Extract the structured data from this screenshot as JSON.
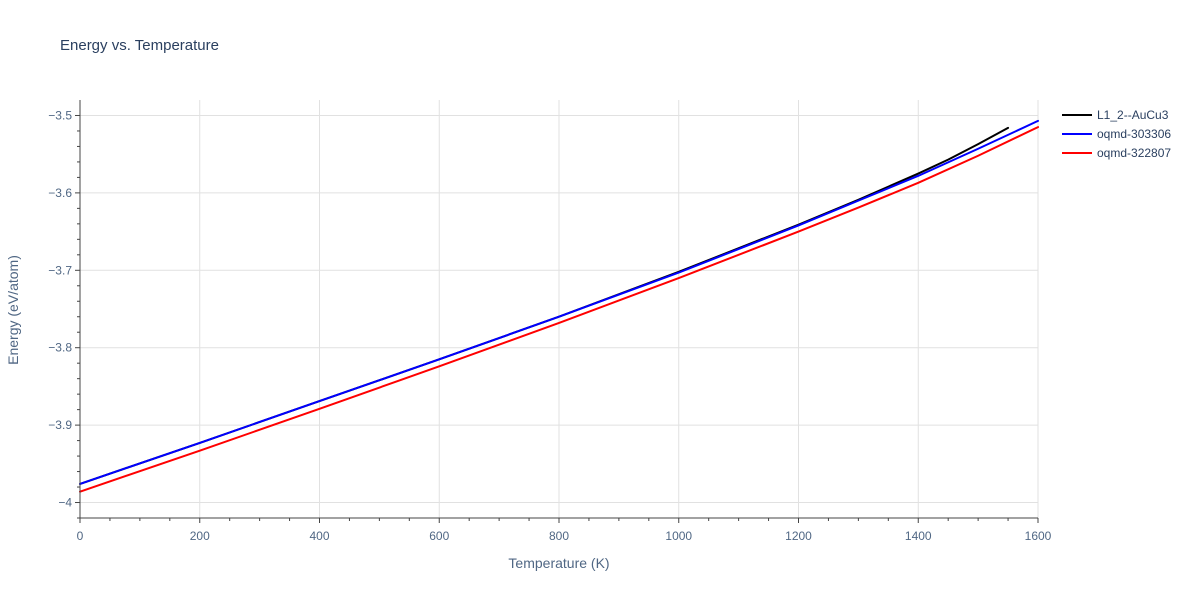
{
  "chart_data": {
    "type": "line",
    "title": "Energy vs. Temperature",
    "xlabel": "Temperature (K)",
    "ylabel": "Energy (eV/atom)",
    "xlim": [
      0,
      1600
    ],
    "ylim": [
      -4.02,
      -3.48
    ],
    "x_ticks": [
      0,
      200,
      400,
      600,
      800,
      1000,
      1200,
      1400,
      1600
    ],
    "x_tick_labels": [
      "0",
      "200",
      "400",
      "600",
      "800",
      "1000",
      "1200",
      "1400",
      "1600"
    ],
    "y_ticks": [
      -4.0,
      -3.9,
      -3.8,
      -3.7,
      -3.6,
      -3.5
    ],
    "y_tick_labels": [
      "−4",
      "−3.9",
      "−3.8",
      "−3.7",
      "−3.6",
      "−3.5"
    ],
    "grid": true,
    "legend_position": "top-right outside",
    "series": [
      {
        "name": "L1_2--AuCu3",
        "color": "#000000",
        "x": [
          0,
          200,
          400,
          600,
          800,
          1000,
          1200,
          1300,
          1400,
          1450,
          1500,
          1550
        ],
        "y": [
          -3.976,
          -3.923,
          -3.869,
          -3.815,
          -3.76,
          -3.702,
          -3.641,
          -3.609,
          -3.575,
          -3.557,
          -3.537,
          -3.516
        ]
      },
      {
        "name": "oqmd-303306",
        "color": "#0000ff",
        "x": [
          0,
          200,
          400,
          600,
          800,
          1000,
          1200,
          1300,
          1400,
          1500,
          1600
        ],
        "y": [
          -3.976,
          -3.923,
          -3.869,
          -3.815,
          -3.76,
          -3.703,
          -3.642,
          -3.61,
          -3.578,
          -3.543,
          -3.507
        ]
      },
      {
        "name": "oqmd-322807",
        "color": "#ff0000",
        "x": [
          0,
          200,
          400,
          600,
          800,
          1000,
          1200,
          1300,
          1400,
          1500,
          1600
        ],
        "y": [
          -3.986,
          -3.933,
          -3.879,
          -3.824,
          -3.768,
          -3.71,
          -3.65,
          -3.619,
          -3.587,
          -3.552,
          -3.515
        ]
      }
    ]
  }
}
